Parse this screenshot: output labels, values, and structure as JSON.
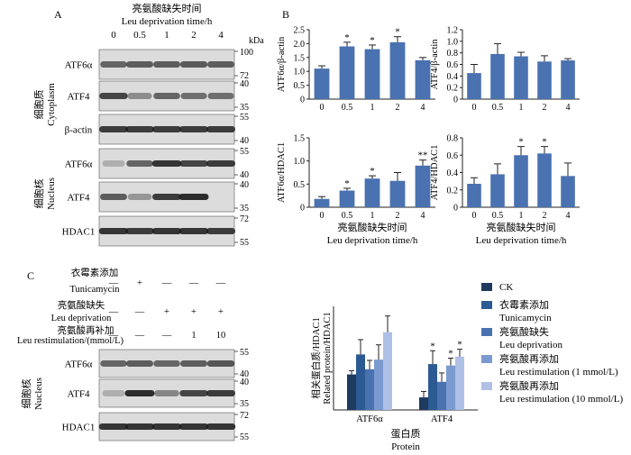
{
  "panel_labels": {
    "a": "A",
    "b": "B",
    "c": "C"
  },
  "panel_a": {
    "header_cn": "亮氨酸缺失时间",
    "header_en": "Leu deprivation time/h",
    "timepoints": [
      "0",
      "0.5",
      "1",
      "2",
      "4"
    ],
    "kda_label": "kDa",
    "cytoplasm_cn": "细胞质",
    "cytoplasm_en": "Cytoplasm",
    "nucleus_cn": "细胞核",
    "nucleus_en": "Nucleus",
    "blots": [
      {
        "label": "ATF6α",
        "markers": [
          "100",
          "72"
        ],
        "intensities": [
          0.55,
          0.6,
          0.6,
          0.62,
          0.6
        ]
      },
      {
        "label": "ATF4",
        "markers": [
          "40",
          "35"
        ],
        "intensities": [
          0.75,
          0.3,
          0.55,
          0.5,
          0.5
        ]
      },
      {
        "label": "β-actin",
        "markers": [
          "55",
          "40"
        ],
        "intensities": [
          0.8,
          0.8,
          0.8,
          0.8,
          0.8
        ]
      },
      {
        "label": "ATF6α",
        "markers": [
          "55",
          "40"
        ],
        "intensities": [
          0.1,
          0.55,
          0.85,
          0.75,
          0.8
        ]
      },
      {
        "label": "ATF4",
        "markers": [
          "40",
          "35"
        ],
        "intensities": [
          0.6,
          0.25,
          0.8,
          0.9,
          0.0
        ]
      },
      {
        "label": "HDAC1",
        "markers": [
          "72",
          "55"
        ],
        "intensities": [
          0.85,
          0.8,
          0.85,
          0.85,
          0.8
        ]
      }
    ]
  },
  "panel_c": {
    "tunicamycin_cn": "衣霉素添加",
    "tunicamycin_en": "Tunicamycin",
    "deprivation_cn": "亮氨酸缺失",
    "deprivation_en": "Leu deprivation",
    "restim_cn": "亮氨酸再补加",
    "restim_en": "Leu restimulation/(mmol/L)",
    "tunicamycin_row": [
      "—",
      "+",
      "—",
      "—",
      "—"
    ],
    "deprivation_row": [
      "—",
      "—",
      "+",
      "+",
      "+"
    ],
    "restim_row": [
      "—",
      "—",
      "—",
      "1",
      "10"
    ],
    "nucleus_cn": "细胞核",
    "nucleus_en": "Nucleus",
    "blots": [
      {
        "label": "ATF6α",
        "markers": [
          "55",
          "40"
        ],
        "intensities": [
          0.55,
          0.6,
          0.55,
          0.6,
          0.65
        ]
      },
      {
        "label": "ATF4",
        "markers": [
          "40",
          "35"
        ],
        "intensities": [
          0.1,
          0.9,
          0.35,
          0.75,
          0.8
        ]
      },
      {
        "label": "HDAC1",
        "markers": [
          "72",
          "55"
        ],
        "intensities": [
          0.85,
          0.85,
          0.85,
          0.85,
          0.85
        ]
      }
    ]
  },
  "legend": [
    {
      "cn": "CK",
      "en": "",
      "color": "#1f3a5f"
    },
    {
      "cn": "衣霉素添加",
      "en": "Tunicamycin",
      "color": "#2c5a92"
    },
    {
      "cn": "亮氨酸缺失",
      "en": "Leu deprivation",
      "color": "#4a72b0"
    },
    {
      "cn": "亮氨酸再添加",
      "en": "Leu restimulation (1 mmol/L)",
      "color": "#7b9ad0"
    },
    {
      "cn": "亮氨酸再添加",
      "en": "Leu restimulation (10 mmol/L)",
      "color": "#aec0e6"
    }
  ],
  "chart_data": [
    {
      "type": "bar",
      "id": "atf6-actin",
      "categories": [
        "0",
        "0.5",
        "1",
        "2",
        "4"
      ],
      "values": [
        1.1,
        1.9,
        1.8,
        2.05,
        1.4
      ],
      "errors": [
        0.1,
        0.15,
        0.15,
        0.2,
        0.1
      ],
      "significance": [
        "",
        "*",
        "*",
        "*",
        ""
      ],
      "ylabel": "ATF6α/β-actin",
      "ylim": [
        0,
        2.5
      ],
      "yticks": [
        "0",
        "0.5",
        "1.0",
        "1.5",
        "2.0",
        "2.5"
      ],
      "color": "#4a72b0"
    },
    {
      "type": "bar",
      "id": "atf4-actin",
      "categories": [
        "0",
        "0.5",
        "1",
        "2",
        "4"
      ],
      "values": [
        0.45,
        0.78,
        0.74,
        0.65,
        0.67
      ],
      "errors": [
        0.15,
        0.18,
        0.07,
        0.1,
        0.03
      ],
      "significance": [
        "",
        "",
        "",
        "",
        ""
      ],
      "ylabel": "ATF4/β-actin",
      "ylim": [
        0,
        1.2
      ],
      "yticks": [
        "0",
        "0.2",
        "0.4",
        "0.6",
        "0.8",
        "1.0",
        "1.2"
      ],
      "color": "#4a72b0"
    },
    {
      "type": "bar",
      "id": "atf6-hdac1",
      "categories": [
        "0",
        "0.5",
        "1",
        "2",
        "4"
      ],
      "values": [
        0.18,
        0.36,
        0.62,
        0.57,
        0.9
      ],
      "errors": [
        0.05,
        0.05,
        0.06,
        0.18,
        0.12
      ],
      "significance": [
        "",
        "*",
        "*",
        "",
        "**"
      ],
      "ylabel": "ATF6α/HDAC1",
      "xlabel_cn": "亮氨酸缺失时间",
      "xlabel_en": "Leu deprivation time/h",
      "ylim": [
        0,
        1.5
      ],
      "yticks": [
        "0",
        "0.5",
        "1.0",
        "1.5"
      ],
      "color": "#4a72b0"
    },
    {
      "type": "bar",
      "id": "atf4-hdac1",
      "categories": [
        "0",
        "0.5",
        "1",
        "2",
        "4"
      ],
      "values": [
        0.27,
        0.38,
        0.6,
        0.62,
        0.36
      ],
      "errors": [
        0.07,
        0.12,
        0.1,
        0.08,
        0.15
      ],
      "significance": [
        "",
        "",
        "*",
        "*",
        ""
      ],
      "ylabel": "ATF4/HDAC1",
      "xlabel_cn": "亮氨酸缺失时间",
      "xlabel_en": "Leu deprivation time/h",
      "ylim": [
        0,
        0.8
      ],
      "yticks": [
        "0",
        "0.2",
        "0.4",
        "0.6",
        "0.8"
      ],
      "color": "#4a72b0"
    },
    {
      "type": "bar",
      "id": "protein-hdac1",
      "categories": [
        "ATF6α",
        "ATF4"
      ],
      "series": [
        {
          "name": "CK",
          "values": [
            0.48,
            0.17
          ],
          "errors": [
            0.05,
            0.08
          ]
        },
        {
          "name": "Tunicamycin",
          "values": [
            0.75,
            0.62
          ],
          "errors": [
            0.2,
            0.18
          ]
        },
        {
          "name": "Leu deprivation",
          "values": [
            0.55,
            0.38
          ],
          "errors": [
            0.12,
            0.12
          ]
        },
        {
          "name": "Leu restimulation (1 mmol/L)",
          "values": [
            0.68,
            0.6
          ],
          "errors": [
            0.2,
            0.1
          ]
        },
        {
          "name": "Leu restimulation (10 mmol/L)",
          "values": [
            1.05,
            0.72
          ],
          "errors": [
            0.22,
            0.1
          ]
        }
      ],
      "significance": [
        [
          "",
          "",
          "",
          "",
          ""
        ],
        [
          "",
          "*",
          "",
          "*",
          "*"
        ]
      ],
      "ylabel_cn": "相关蛋白质/HDAC1",
      "ylabel_en": "Related protein/HDAC1",
      "xlabel_cn": "蛋白质",
      "xlabel_en": "Protein",
      "ylim": [
        0,
        1.4
      ]
    }
  ]
}
